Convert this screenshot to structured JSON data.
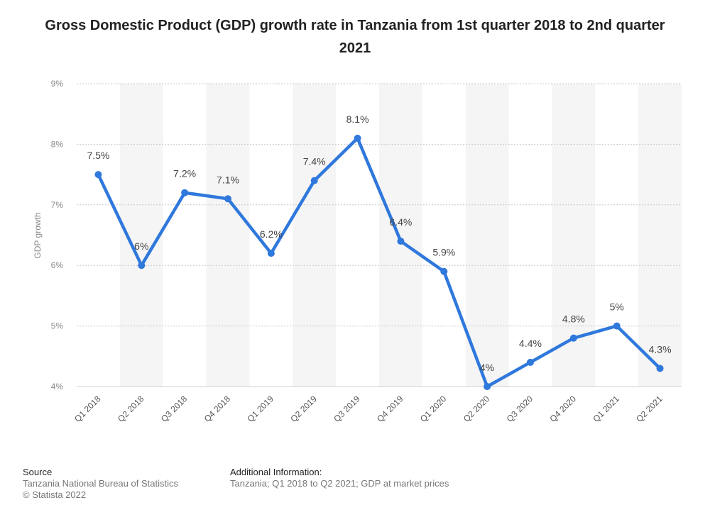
{
  "chart_data": {
    "type": "line",
    "title": "Gross Domestic Product (GDP) growth rate in Tanzania from 1st quarter 2018 to 2nd quarter 2021",
    "ylabel": "GDP growth",
    "xlabel": "",
    "categories": [
      "Q1 2018",
      "Q2 2018",
      "Q3 2018",
      "Q4 2018",
      "Q1 2019",
      "Q2 2019",
      "Q3 2019",
      "Q4 2019",
      "Q1 2020",
      "Q2 2020",
      "Q3 2020",
      "Q4 2020",
      "Q1 2021",
      "Q2 2021"
    ],
    "values": [
      7.5,
      6,
      7.2,
      7.1,
      6.2,
      7.4,
      8.1,
      6.4,
      5.9,
      4,
      4.4,
      4.8,
      5,
      4.3
    ],
    "data_labels": [
      "7.5%",
      "6%",
      "7.2%",
      "7.1%",
      "6.2%",
      "7.4%",
      "8.1%",
      "6.4%",
      "5.9%",
      "4%",
      "4.4%",
      "4.8%",
      "5%",
      "4.3%"
    ],
    "ylim": [
      4,
      9
    ],
    "yticks": [
      4,
      5,
      6,
      7,
      8,
      9
    ],
    "ytick_labels": [
      "4%",
      "5%",
      "6%",
      "7%",
      "8%",
      "9%"
    ],
    "grid": true,
    "legend": "none",
    "line_color": "#2f78dc"
  },
  "footer": {
    "source_heading": "Source",
    "source_line1": "Tanzania National Bureau of Statistics",
    "source_line2": "© Statista 2022",
    "info_heading": "Additional Information:",
    "info_text": "Tanzania; Q1 2018 to Q2 2021; GDP at market prices"
  }
}
